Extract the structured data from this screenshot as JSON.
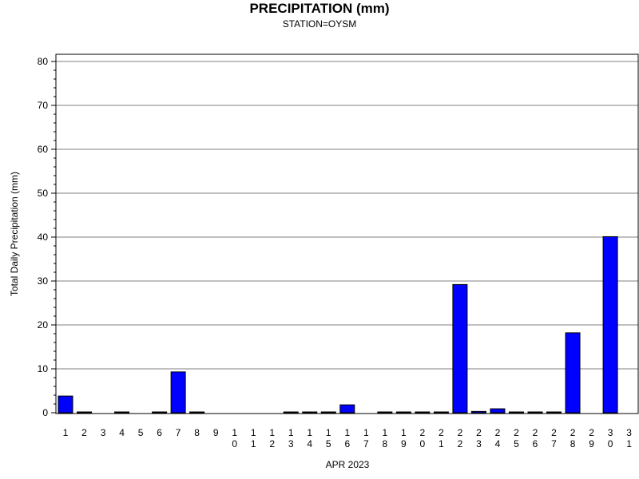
{
  "chart_data": {
    "type": "bar",
    "title": "PRECIPITATION (mm)",
    "subtitle": "STATION=OYSM",
    "xlabel": "APR 2023",
    "ylabel": "Total Daily Precipitation (mm)",
    "ylim": [
      0,
      82
    ],
    "yticks": [
      0,
      10,
      20,
      30,
      40,
      50,
      60,
      70,
      80
    ],
    "grid": true,
    "categories": [
      "1",
      "2",
      "3",
      "4",
      "5",
      "6",
      "7",
      "8",
      "9",
      "10",
      "11",
      "12",
      "13",
      "14",
      "15",
      "16",
      "17",
      "18",
      "19",
      "20",
      "21",
      "22",
      "23",
      "24",
      "25",
      "26",
      "27",
      "28",
      "29",
      "30",
      "31"
    ],
    "values": [
      3.8,
      0.1,
      null,
      0.1,
      null,
      0.1,
      9.3,
      0.1,
      null,
      null,
      null,
      null,
      0.1,
      0.1,
      0.1,
      1.8,
      null,
      0.1,
      0.1,
      0.1,
      0.1,
      29.2,
      0.3,
      0.9,
      0.1,
      0.1,
      0.1,
      18.2,
      null,
      40.1,
      null
    ],
    "colors": {
      "bar": "#0000ff",
      "bar_edge": "#000000",
      "grid": "#808080",
      "frame": "#000000"
    }
  }
}
